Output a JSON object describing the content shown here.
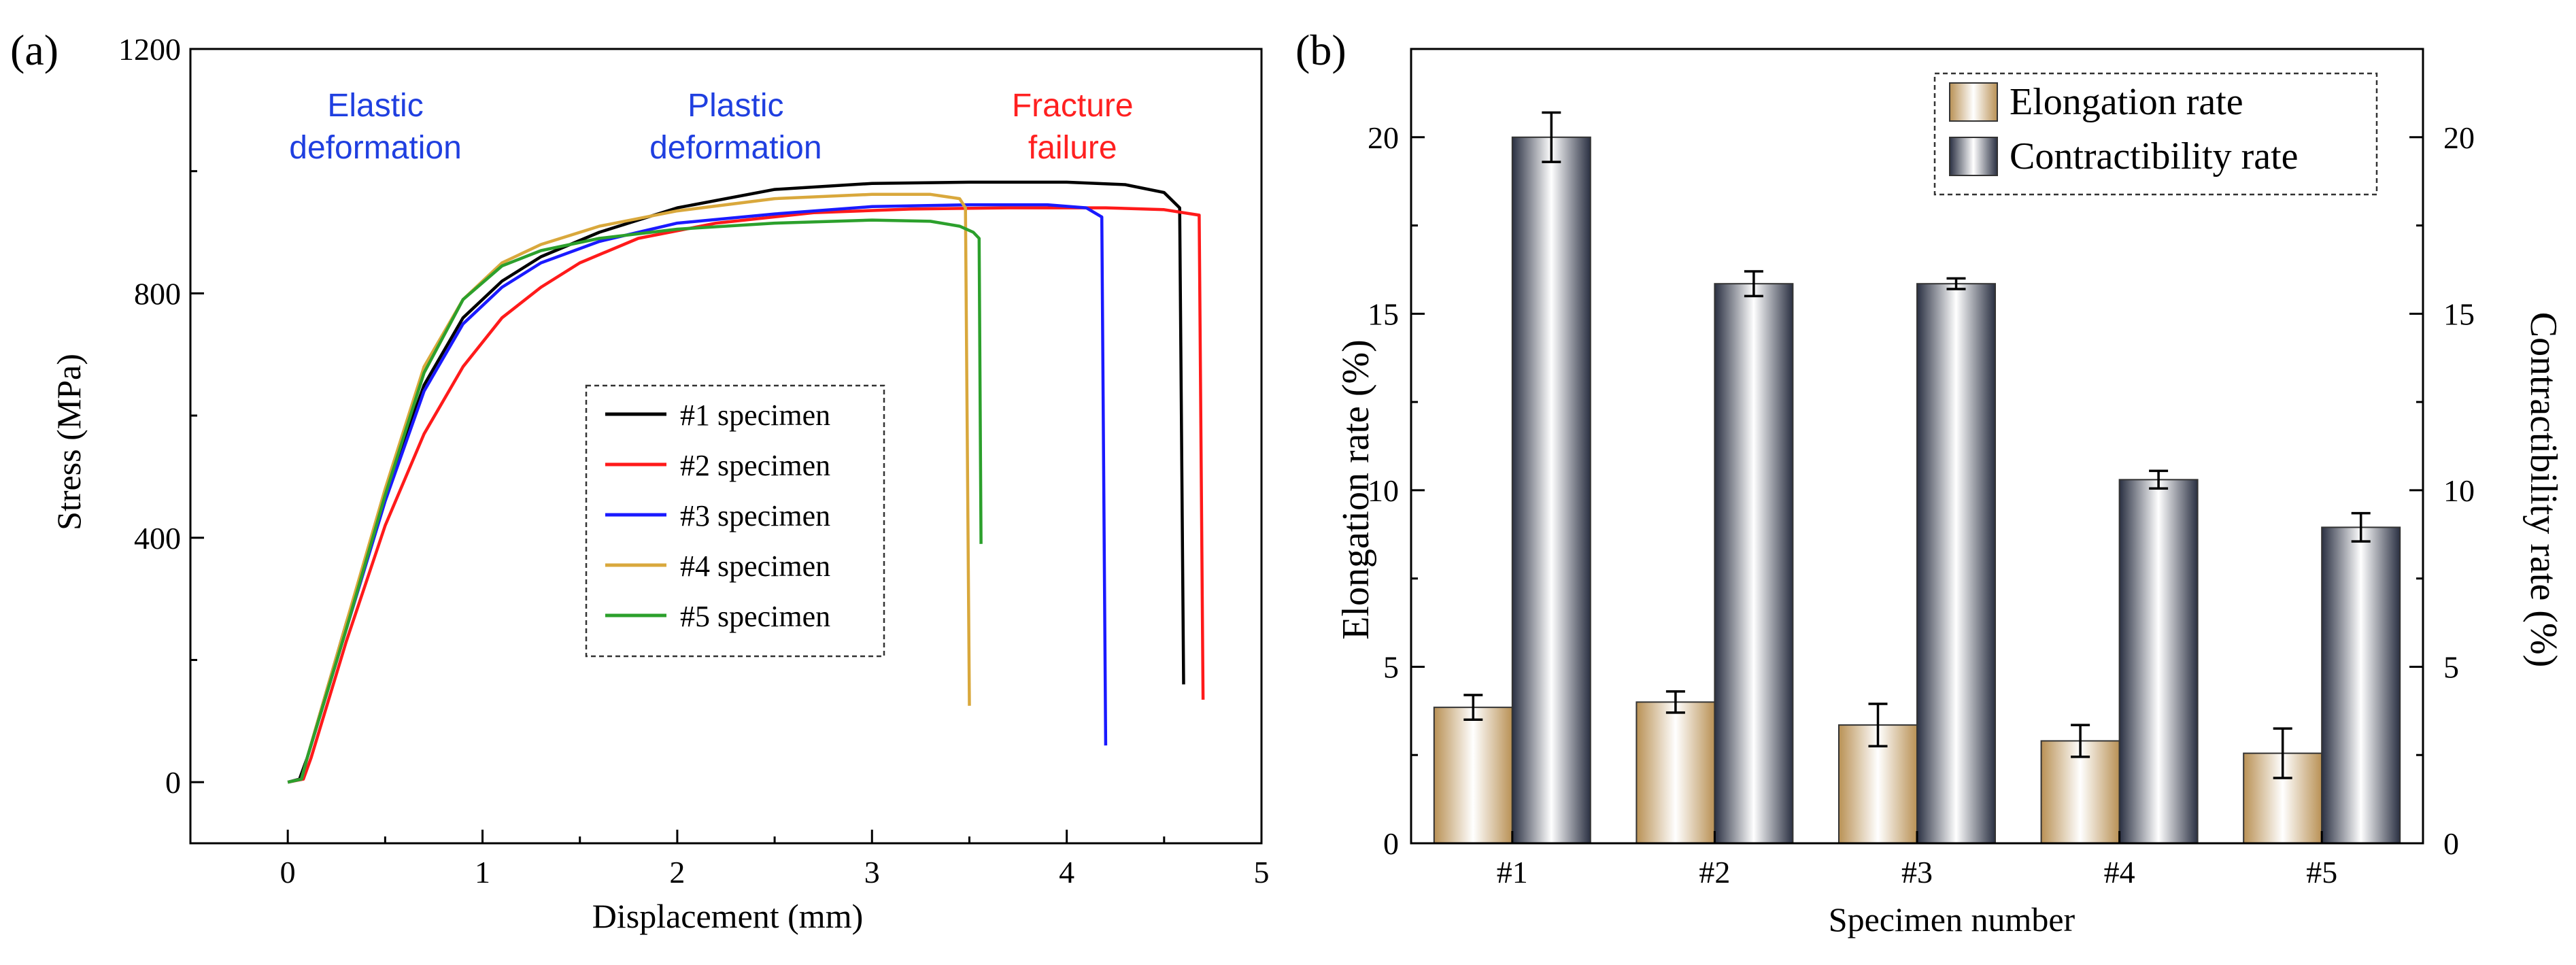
{
  "chart_data": [
    {
      "panel": "(a)",
      "type": "line",
      "xlabel": "Displacement (mm)",
      "ylabel": "Stress (MPa)",
      "xlim": [
        -0.5,
        5
      ],
      "ylim": [
        -100,
        1200
      ],
      "xticks": [
        0,
        1,
        2,
        3,
        4,
        5
      ],
      "yticks": [
        0,
        400,
        800,
        1200
      ],
      "legend_position": "center-right",
      "annotations": [
        {
          "lines": [
            "Elastic",
            "deformation"
          ],
          "color": "#1f3fe0",
          "x": 0.45,
          "y": 1090
        },
        {
          "lines": [
            "Plastic",
            "deformation"
          ],
          "color": "#1f3fe0",
          "x": 2.3,
          "y": 1090
        },
        {
          "lines": [
            "Fracture",
            "failure"
          ],
          "color": "#ff2020",
          "x": 4.03,
          "y": 1090
        }
      ],
      "series": [
        {
          "name": "#1 specimen",
          "color": "#000000",
          "points": [
            [
              0,
              0
            ],
            [
              0.06,
              5
            ],
            [
              0.1,
              40
            ],
            [
              0.3,
              260
            ],
            [
              0.5,
              470
            ],
            [
              0.7,
              650
            ],
            [
              0.9,
              760
            ],
            [
              1.1,
              820
            ],
            [
              1.3,
              860
            ],
            [
              1.6,
              900
            ],
            [
              2.0,
              940
            ],
            [
              2.5,
              970
            ],
            [
              3.0,
              980
            ],
            [
              3.5,
              982
            ],
            [
              4.0,
              982
            ],
            [
              4.3,
              978
            ],
            [
              4.5,
              965
            ],
            [
              4.58,
              940
            ],
            [
              4.6,
              160
            ]
          ]
        },
        {
          "name": "#2 specimen",
          "color": "#ff1a1a",
          "points": [
            [
              0,
              0
            ],
            [
              0.08,
              5
            ],
            [
              0.12,
              40
            ],
            [
              0.3,
              230
            ],
            [
              0.5,
              420
            ],
            [
              0.7,
              570
            ],
            [
              0.9,
              680
            ],
            [
              1.1,
              760
            ],
            [
              1.3,
              810
            ],
            [
              1.5,
              850
            ],
            [
              1.8,
              890
            ],
            [
              2.2,
              915
            ],
            [
              2.7,
              932
            ],
            [
              3.2,
              938
            ],
            [
              3.7,
              940
            ],
            [
              4.2,
              940
            ],
            [
              4.5,
              937
            ],
            [
              4.68,
              928
            ],
            [
              4.7,
              135
            ]
          ]
        },
        {
          "name": "#3 specimen",
          "color": "#1a1aff",
          "points": [
            [
              0,
              0
            ],
            [
              0.07,
              5
            ],
            [
              0.1,
              40
            ],
            [
              0.3,
              250
            ],
            [
              0.5,
              460
            ],
            [
              0.7,
              640
            ],
            [
              0.9,
              750
            ],
            [
              1.1,
              810
            ],
            [
              1.3,
              850
            ],
            [
              1.6,
              885
            ],
            [
              2.0,
              915
            ],
            [
              2.5,
              930
            ],
            [
              3.0,
              942
            ],
            [
              3.5,
              945
            ],
            [
              3.9,
              945
            ],
            [
              4.1,
              940
            ],
            [
              4.18,
              925
            ],
            [
              4.2,
              60
            ]
          ]
        },
        {
          "name": "#4 specimen",
          "color": "#d9a83c",
          "points": [
            [
              0,
              0
            ],
            [
              0.07,
              5
            ],
            [
              0.1,
              40
            ],
            [
              0.3,
              260
            ],
            [
              0.5,
              480
            ],
            [
              0.7,
              680
            ],
            [
              0.9,
              790
            ],
            [
              1.1,
              850
            ],
            [
              1.3,
              880
            ],
            [
              1.6,
              910
            ],
            [
              2.0,
              935
            ],
            [
              2.5,
              955
            ],
            [
              3.0,
              962
            ],
            [
              3.3,
              962
            ],
            [
              3.45,
              955
            ],
            [
              3.48,
              940
            ],
            [
              3.5,
              125
            ]
          ]
        },
        {
          "name": "#5 specimen",
          "color": "#2ca02c",
          "points": [
            [
              0,
              0
            ],
            [
              0.07,
              5
            ],
            [
              0.1,
              40
            ],
            [
              0.3,
              250
            ],
            [
              0.5,
              470
            ],
            [
              0.7,
              670
            ],
            [
              0.9,
              790
            ],
            [
              1.1,
              845
            ],
            [
              1.3,
              870
            ],
            [
              1.6,
              890
            ],
            [
              2.0,
              905
            ],
            [
              2.5,
              915
            ],
            [
              3.0,
              920
            ],
            [
              3.3,
              918
            ],
            [
              3.45,
              910
            ],
            [
              3.52,
              900
            ],
            [
              3.55,
              890
            ],
            [
              3.56,
              390
            ]
          ]
        }
      ]
    },
    {
      "panel": "(b)",
      "type": "bar",
      "xlabel": "Specimen number",
      "ylabel": "Elongation rate (%)",
      "y2label": "Contractibility rate (%)",
      "categories": [
        "#1",
        "#2",
        "#3",
        "#4",
        "#5"
      ],
      "ylim": [
        0,
        22.5
      ],
      "y2lim": [
        0,
        22.5
      ],
      "yticks": [
        0,
        5,
        10,
        15,
        20
      ],
      "legend_position": "top-right",
      "series": [
        {
          "name": "Elongation rate",
          "values": [
            3.85,
            4.0,
            3.35,
            2.9,
            2.55
          ],
          "errors": [
            0.35,
            0.3,
            0.6,
            0.45,
            0.7
          ],
          "color": "#c9a16a"
        },
        {
          "name": "Contractibility rate",
          "values": [
            20.0,
            15.85,
            15.85,
            10.3,
            8.95
          ],
          "errors": [
            0.7,
            0.35,
            0.15,
            0.25,
            0.4
          ],
          "color": "#2e3547"
        }
      ]
    }
  ]
}
